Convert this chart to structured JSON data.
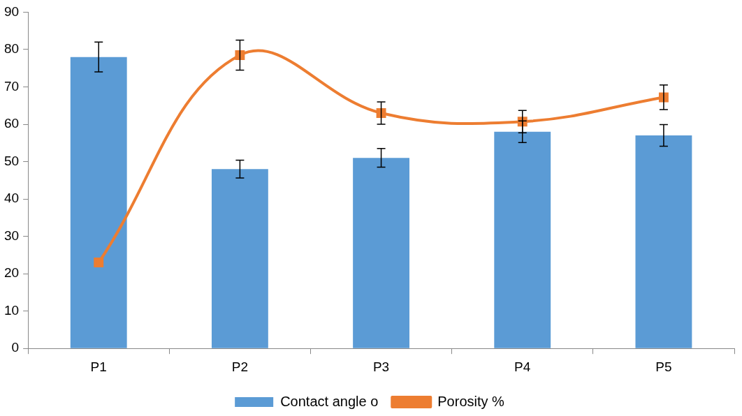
{
  "chart_data": {
    "type": "bar",
    "categories": [
      "P1",
      "P2",
      "P3",
      "P4",
      "P5"
    ],
    "series": [
      {
        "name": "Contact angle o",
        "color": "#5b9bd5",
        "values": [
          78,
          48,
          51,
          58,
          57
        ],
        "errors": [
          4,
          2.4,
          2.5,
          2.9,
          2.9
        ]
      },
      {
        "name": "Porosity %",
        "type": "line",
        "color": "#ed7d31",
        "values": [
          23,
          78.5,
          63,
          60.7,
          67.2
        ],
        "errors": [
          null,
          4,
          3,
          3,
          3.3
        ],
        "marker": "square"
      }
    ],
    "ylim": [
      0,
      90
    ],
    "yticks": [
      0,
      10,
      20,
      30,
      40,
      50,
      60,
      70,
      80,
      90
    ],
    "grid": false,
    "legend": "bottom"
  }
}
